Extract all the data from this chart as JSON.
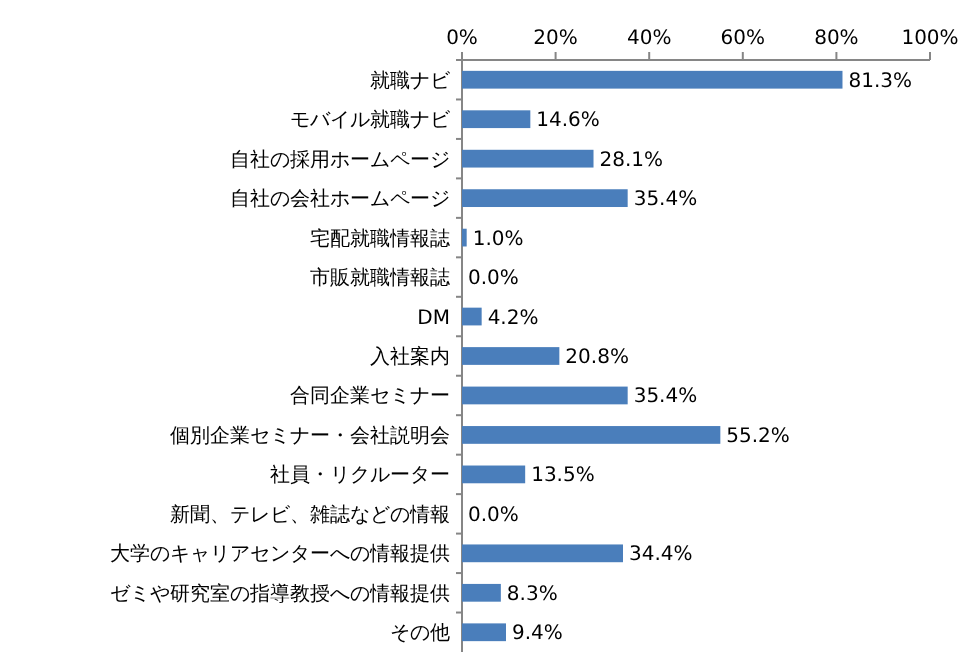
{
  "chart_data": {
    "type": "bar",
    "orientation": "horizontal",
    "categories": [
      "就職ナビ",
      "モバイル就職ナビ",
      "自社の採用ホームページ",
      "自社の会社ホームページ",
      "宅配就職情報誌",
      "市販就職情報誌",
      "DM",
      "入社案内",
      "合同企業セミナー",
      "個別企業セミナー・会社説明会",
      "社員・リクルーター",
      "新聞、テレビ、雑誌などの情報",
      "大学のキャリアセンターへの情報提供",
      "ゼミや研究室の指導教授への情報提供",
      "その他"
    ],
    "values": [
      81.3,
      14.6,
      28.1,
      35.4,
      1.0,
      0.0,
      4.2,
      20.8,
      35.4,
      55.2,
      13.5,
      0.0,
      34.4,
      8.3,
      9.4
    ],
    "value_labels": [
      "81.3%",
      "14.6%",
      "28.1%",
      "35.4%",
      "1.0%",
      "0.0%",
      "4.2%",
      "20.8%",
      "35.4%",
      "55.2%",
      "13.5%",
      "0.0%",
      "34.4%",
      "8.3%",
      "9.4%"
    ],
    "color": "#4a7ebb",
    "xlim": [
      0,
      100
    ],
    "xticks": [
      {
        "value": 0,
        "label": "0%"
      },
      {
        "value": 20,
        "label": "20%"
      },
      {
        "value": 40,
        "label": "40%"
      },
      {
        "value": 60,
        "label": "60%"
      },
      {
        "value": 80,
        "label": "80%"
      },
      {
        "value": 100,
        "label": "100%"
      }
    ],
    "grid": false
  }
}
